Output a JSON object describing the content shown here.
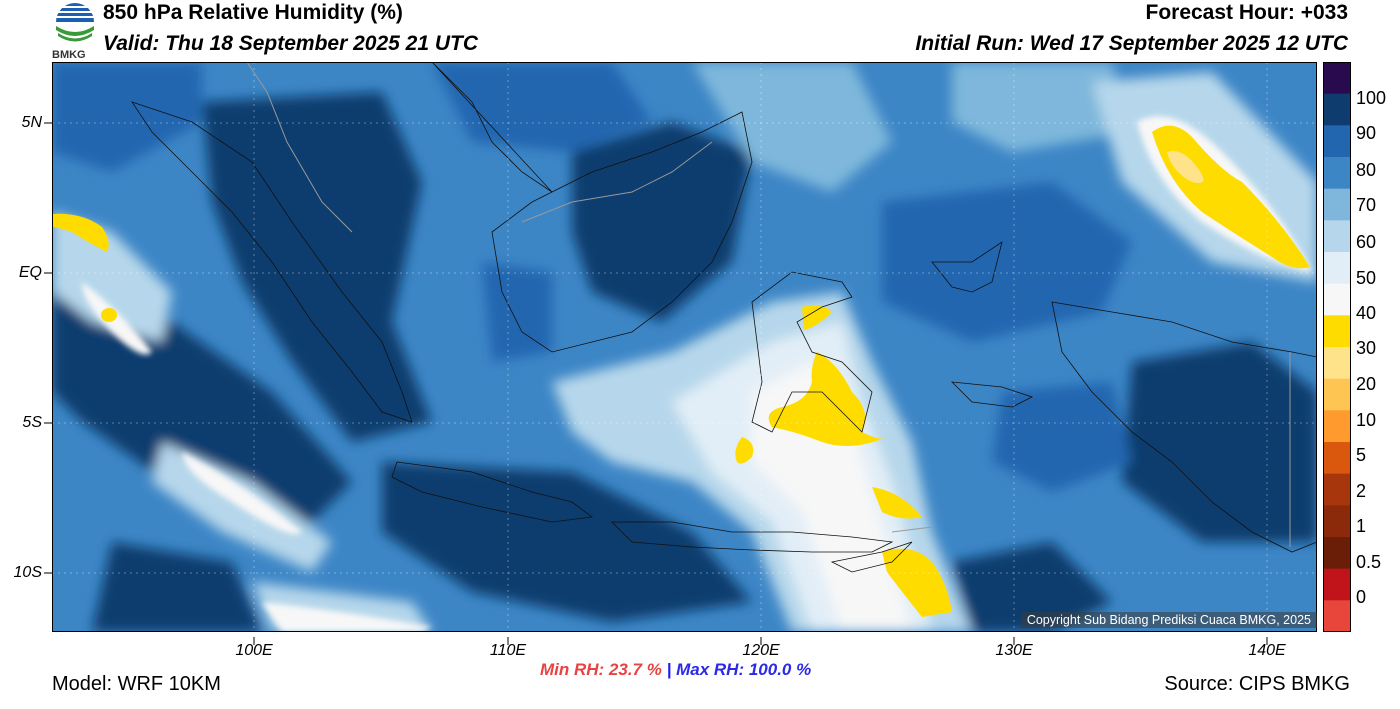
{
  "header": {
    "title": "850 hPa Relative Humidity (%)",
    "valid": "Valid: Thu 18 September 2025 21 UTC",
    "forecast_hour": "Forecast Hour: +033",
    "initial_run": "Initial Run: Wed 17 September 2025 12 UTC",
    "logo_text": "BMKG"
  },
  "map": {
    "lat_labels": [
      "5N",
      "EQ",
      "5S",
      "10S"
    ],
    "lon_labels": [
      "100E",
      "110E",
      "120E",
      "130E",
      "140E"
    ],
    "copyright": "Copyright Sub Bidang Prediksi Cuaca BMKG, 2025",
    "colors": {
      "deep": "#0e3c6e",
      "dark": "#2266b0",
      "mid": "#3d86c6",
      "light": "#7eb7db",
      "pale": "#b6d7eb",
      "paler": "#d8e9f4",
      "white": "#f7f7f7",
      "yellow": "#ffdc00"
    }
  },
  "colorbar": {
    "labels": [
      "100",
      "90",
      "80",
      "70",
      "60",
      "50",
      "40",
      "30",
      "20",
      "10",
      "5",
      "2",
      "1",
      "0.5",
      "0"
    ],
    "colors": [
      "#2a0a4e",
      "#0e3c6e",
      "#2266b0",
      "#3d86c6",
      "#7eb7db",
      "#b6d7eb",
      "#e2eef7",
      "#f7f7f7",
      "#ffdc00",
      "#ffe38a",
      "#ffc552",
      "#ff9a2e",
      "#d9580e",
      "#a8360c",
      "#8a2a0a",
      "#6a1e08",
      "#c0141a",
      "#e8463a"
    ]
  },
  "stats": {
    "min_rh": "Min RH:  23.7 %",
    "separator": "|",
    "max_rh": "Max RH: 100.0 %"
  },
  "footer": {
    "model": "Model: WRF 10KM",
    "source": "Source: CIPS BMKG"
  }
}
